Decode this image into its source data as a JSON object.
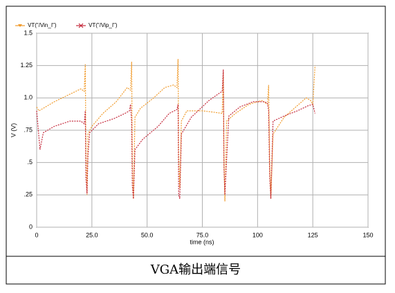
{
  "chart_data": {
    "type": "line",
    "ylabel": "V (V)",
    "xlabel": "time (ns)",
    "caption": "VGA输出端信号",
    "xlim": [
      0,
      150
    ],
    "xticks": [
      0,
      {
        "value": 25,
        "label": "25.0"
      },
      {
        "value": 50,
        "label": "50.0"
      },
      {
        "value": 75,
        "label": "75.0"
      },
      100,
      125,
      150
    ],
    "ylim": [
      0,
      1.5
    ],
    "yticks": [
      0,
      {
        "value": 0.25,
        "label": ".25"
      },
      {
        "value": 0.5,
        "label": ".5"
      },
      {
        "value": 0.75,
        "label": ".75"
      },
      {
        "value": 1.0,
        "label": "1.0"
      },
      1.25,
      1.5
    ],
    "grid": true,
    "legend": "top-left",
    "series": [
      {
        "name": "VT(\"/Vin_I\")",
        "color": "#f09a2a",
        "x": [
          0,
          1,
          3,
          8,
          14,
          20,
          21.5,
          22,
          22.3,
          22.8,
          23.2,
          25,
          30,
          36,
          41,
          42.5,
          43,
          43.3,
          43.8,
          44.5,
          47,
          53,
          58,
          62,
          63.5,
          64,
          64.3,
          64.8,
          65.5,
          68,
          75,
          80,
          84,
          84.5,
          84.8,
          85.2,
          86,
          90,
          96,
          102,
          104.5,
          105,
          105.5,
          106,
          107,
          112,
          118,
          122,
          124,
          125,
          126
        ],
        "values": [
          0.93,
          0.9,
          0.92,
          0.97,
          1.02,
          1.07,
          1.05,
          1.26,
          0.6,
          0.25,
          0.72,
          0.78,
          0.88,
          0.97,
          1.08,
          1.06,
          1.28,
          0.5,
          0.22,
          0.85,
          0.92,
          1.0,
          1.08,
          1.1,
          1.08,
          1.3,
          0.55,
          0.3,
          0.82,
          0.9,
          0.9,
          0.89,
          0.88,
          1.2,
          0.5,
          0.2,
          0.82,
          0.88,
          0.95,
          0.98,
          0.95,
          1.1,
          0.5,
          0.22,
          0.72,
          0.85,
          0.94,
          1.0,
          0.98,
          0.95,
          1.25
        ]
      },
      {
        "name": "VT(\"/Vip_I\")",
        "color": "#c4283a",
        "x": [
          0,
          1.5,
          3,
          8,
          15,
          20,
          21.5,
          22,
          22.3,
          22.8,
          23.2,
          24,
          28,
          35,
          40,
          42,
          42.5,
          43,
          43.3,
          43.8,
          44.5,
          48,
          55,
          60,
          63.5,
          64,
          64.3,
          64.8,
          65.5,
          70,
          78,
          83,
          84,
          84.5,
          84.8,
          85.2,
          86,
          87,
          92,
          98,
          103,
          104.5,
          105,
          105.5,
          106,
          107,
          112,
          118,
          123,
          125,
          126
        ],
        "values": [
          0.9,
          0.6,
          0.73,
          0.78,
          0.82,
          0.82,
          0.8,
          0.9,
          0.38,
          0.26,
          0.55,
          0.73,
          0.8,
          0.84,
          0.88,
          0.9,
          0.95,
          0.81,
          0.32,
          0.22,
          0.6,
          0.68,
          0.78,
          0.88,
          0.91,
          0.95,
          0.25,
          0.22,
          0.72,
          0.85,
          0.98,
          1.04,
          1.05,
          1.22,
          0.46,
          0.25,
          0.52,
          0.86,
          0.93,
          0.97,
          0.97,
          0.96,
          0.9,
          0.39,
          0.22,
          0.82,
          0.86,
          0.9,
          0.94,
          0.95,
          0.88
        ]
      }
    ]
  }
}
